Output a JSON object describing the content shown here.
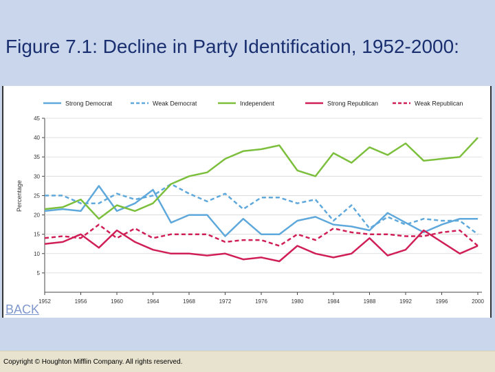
{
  "slide": {
    "title": "Figure 7.1: Decline in Party Identification, 1952-2000:",
    "back_label": "BACK",
    "copyright": "Copyright © Houghton Mifflin Company. All rights reserved."
  },
  "chart_data": {
    "type": "line",
    "title": "",
    "xlabel": "",
    "ylabel": "Percentage",
    "ylim": [
      0,
      45
    ],
    "yticks": [
      5,
      10,
      15,
      20,
      25,
      30,
      35,
      40,
      45
    ],
    "x": [
      1952,
      1954,
      1956,
      1958,
      1960,
      1962,
      1964,
      1966,
      1968,
      1970,
      1972,
      1974,
      1976,
      1978,
      1980,
      1982,
      1984,
      1986,
      1988,
      1990,
      1992,
      1994,
      1996,
      1998,
      2000
    ],
    "xticks": [
      1952,
      1956,
      1960,
      1964,
      1968,
      1972,
      1976,
      1980,
      1984,
      1988,
      1992,
      1996,
      2000
    ],
    "series": [
      {
        "name": "Strong Democrat",
        "color": "#5ea8dc",
        "dash": false,
        "values": [
          21,
          21.5,
          21,
          27.5,
          21,
          23,
          26.5,
          18,
          20,
          20,
          14.5,
          19,
          15,
          15,
          18.5,
          19.5,
          17.5,
          17,
          16,
          20.5,
          18,
          15.5,
          17.5,
          19,
          19
        ]
      },
      {
        "name": "Weak Democrat",
        "color": "#5ea8dc",
        "dash": true,
        "values": [
          25,
          25,
          23,
          23,
          25.5,
          24,
          25,
          28,
          25.5,
          23.5,
          25.5,
          21.5,
          24.5,
          24.5,
          23,
          24,
          18.5,
          22.5,
          16.5,
          19.5,
          17.5,
          19,
          18.5,
          18.5,
          15
        ]
      },
      {
        "name": "Independent",
        "color": "#7cbf3c",
        "dash": false,
        "values": [
          21.5,
          22,
          24,
          19,
          22.5,
          21,
          23,
          28,
          30,
          31,
          34.5,
          36.5,
          37,
          38,
          31.5,
          30,
          36,
          33.5,
          37.5,
          35.5,
          38.5,
          34,
          34.5,
          35,
          40
        ]
      },
      {
        "name": "Strong Republican",
        "color": "#d01f56",
        "dash": false,
        "values": [
          12.5,
          13,
          15,
          11.5,
          16,
          13,
          11,
          10,
          10,
          9.5,
          10,
          8.5,
          9,
          8,
          12,
          10,
          9,
          10,
          14,
          9.5,
          11,
          16,
          13,
          10,
          12
        ]
      },
      {
        "name": "Weak Republican",
        "color": "#d01f56",
        "dash": true,
        "values": [
          14,
          14.5,
          14,
          17.5,
          14,
          16.5,
          14,
          15,
          15,
          15,
          13,
          13.5,
          13.5,
          12,
          15,
          13.5,
          16.5,
          15.5,
          15,
          15,
          14.5,
          14.5,
          15.5,
          16,
          12
        ]
      }
    ],
    "legend_position": "top"
  }
}
